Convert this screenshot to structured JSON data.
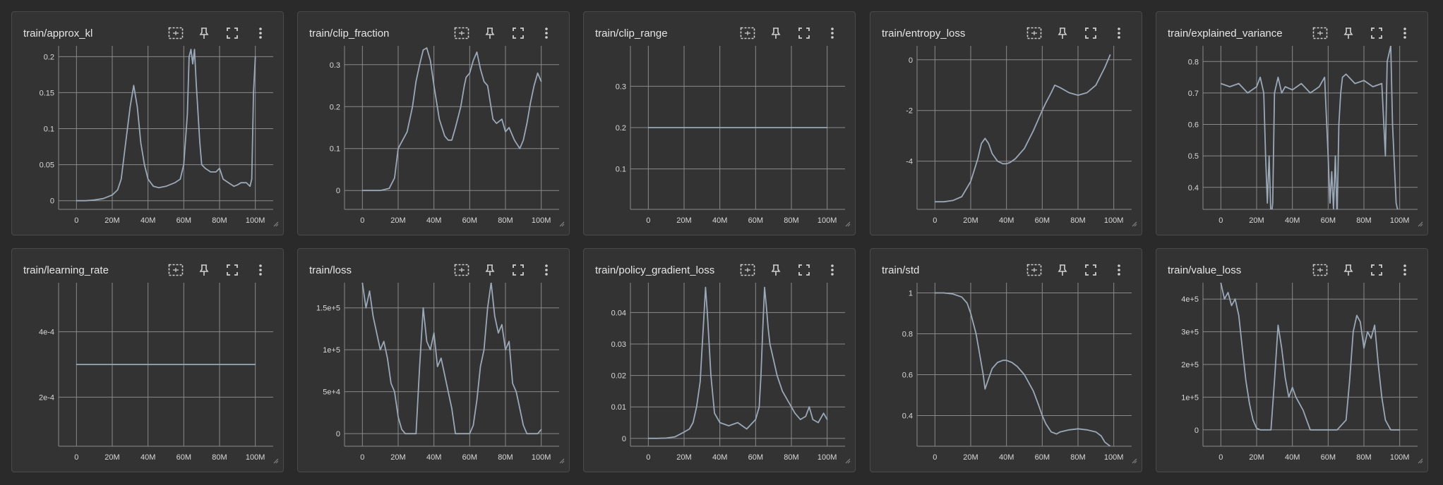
{
  "colors": {
    "background": "#2a2a2a",
    "card": "#333333",
    "grid": "#8a8a8a",
    "series": "#9aa8b8"
  },
  "icons": {
    "fit": "fit-domain-icon",
    "pin": "pin-icon",
    "fullscreen": "fullscreen-icon",
    "more": "more-vert-icon"
  },
  "chart_data": [
    {
      "title": "train/approx_kl",
      "type": "line",
      "xticks": [
        "0",
        "20M",
        "40M",
        "60M",
        "80M",
        "100M"
      ],
      "xlim": [
        -10,
        110
      ],
      "yticks": [
        "0",
        "0.05",
        "0.1",
        "0.15",
        "0.2"
      ],
      "ylim": [
        -0.012,
        0.215
      ],
      "x": [
        0,
        5,
        10,
        15,
        20,
        23,
        25,
        27,
        30,
        32,
        34,
        36,
        38,
        40,
        43,
        46,
        50,
        55,
        58,
        60,
        62,
        63,
        64,
        65,
        66,
        67,
        69,
        70,
        72,
        75,
        78,
        80,
        82,
        85,
        88,
        90,
        92,
        95,
        97,
        98,
        99,
        100
      ],
      "y": [
        0,
        0,
        0.001,
        0.003,
        0.008,
        0.015,
        0.03,
        0.07,
        0.13,
        0.16,
        0.13,
        0.08,
        0.05,
        0.03,
        0.02,
        0.018,
        0.02,
        0.025,
        0.03,
        0.05,
        0.12,
        0.2,
        0.21,
        0.19,
        0.21,
        0.16,
        0.08,
        0.05,
        0.045,
        0.04,
        0.04,
        0.045,
        0.03,
        0.025,
        0.02,
        0.022,
        0.025,
        0.025,
        0.02,
        0.03,
        0.15,
        0.2
      ]
    },
    {
      "title": "train/clip_fraction",
      "type": "line",
      "xticks": [
        "0",
        "20M",
        "40M",
        "60M",
        "80M",
        "100M"
      ],
      "xlim": [
        -10,
        110
      ],
      "yticks": [
        "0",
        "0.1",
        "0.2",
        "0.3"
      ],
      "ylim": [
        -0.045,
        0.345
      ],
      "x": [
        0,
        5,
        10,
        15,
        18,
        20,
        25,
        28,
        30,
        32,
        34,
        36,
        38,
        40,
        43,
        46,
        48,
        50,
        52,
        55,
        57,
        58,
        60,
        62,
        64,
        66,
        68,
        70,
        73,
        75,
        78,
        80,
        82,
        85,
        88,
        90,
        92,
        94,
        96,
        98,
        100
      ],
      "y": [
        0,
        0,
        0,
        0.005,
        0.03,
        0.1,
        0.14,
        0.2,
        0.26,
        0.3,
        0.335,
        0.34,
        0.31,
        0.25,
        0.17,
        0.13,
        0.12,
        0.12,
        0.15,
        0.2,
        0.25,
        0.27,
        0.28,
        0.31,
        0.33,
        0.29,
        0.26,
        0.25,
        0.17,
        0.16,
        0.17,
        0.14,
        0.15,
        0.12,
        0.1,
        0.12,
        0.16,
        0.21,
        0.25,
        0.28,
        0.26
      ]
    },
    {
      "title": "train/clip_range",
      "type": "line",
      "xticks": [
        "0",
        "20M",
        "40M",
        "60M",
        "80M",
        "100M"
      ],
      "xlim": [
        -10,
        110
      ],
      "yticks": [
        "0.1",
        "0.2",
        "0.3"
      ],
      "ylim": [
        0.002,
        0.398
      ],
      "x": [
        0,
        100
      ],
      "y": [
        0.2,
        0.2
      ]
    },
    {
      "title": "train/entropy_loss",
      "type": "line",
      "xticks": [
        "0",
        "20M",
        "40M",
        "60M",
        "80M",
        "100M"
      ],
      "xlim": [
        -10,
        110
      ],
      "yticks": [
        "-4",
        "-2",
        "0"
      ],
      "ylim": [
        -5.9,
        0.55
      ],
      "x": [
        0,
        5,
        10,
        15,
        20,
        24,
        26,
        28,
        30,
        32,
        35,
        38,
        40,
        42,
        45,
        50,
        55,
        60,
        62,
        65,
        67,
        70,
        75,
        80,
        85,
        90,
        95,
        98
      ],
      "y": [
        -5.6,
        -5.6,
        -5.55,
        -5.4,
        -4.8,
        -3.9,
        -3.3,
        -3.1,
        -3.3,
        -3.7,
        -4.0,
        -4.1,
        -4.1,
        -4.05,
        -3.9,
        -3.5,
        -2.8,
        -2.0,
        -1.7,
        -1.3,
        -1.0,
        -1.1,
        -1.3,
        -1.4,
        -1.3,
        -1.0,
        -0.3,
        0.2
      ]
    },
    {
      "title": "train/explained_variance",
      "type": "line",
      "xticks": [
        "0",
        "20M",
        "40M",
        "60M",
        "80M",
        "100M"
      ],
      "xlim": [
        -10,
        110
      ],
      "yticks": [
        "0.4",
        "0.5",
        "0.6",
        "0.7",
        "0.8"
      ],
      "ylim": [
        0.33,
        0.85
      ],
      "x": [
        0,
        5,
        10,
        15,
        20,
        22,
        24,
        25,
        26,
        27,
        28,
        29,
        30,
        32,
        34,
        36,
        40,
        45,
        50,
        55,
        58,
        60,
        61,
        62,
        63,
        64,
        65,
        66,
        67,
        68,
        70,
        75,
        80,
        85,
        90,
        92,
        93,
        95,
        96,
        98,
        100
      ],
      "y": [
        0.73,
        0.72,
        0.73,
        0.7,
        0.72,
        0.75,
        0.7,
        0.5,
        0.35,
        0.5,
        0.3,
        0.35,
        0.7,
        0.75,
        0.7,
        0.72,
        0.71,
        0.73,
        0.7,
        0.72,
        0.75,
        0.5,
        0.35,
        0.45,
        0.33,
        0.5,
        0.3,
        0.6,
        0.7,
        0.75,
        0.76,
        0.73,
        0.74,
        0.72,
        0.73,
        0.5,
        0.8,
        0.85,
        0.6,
        0.35,
        0.3
      ]
    },
    {
      "title": "train/learning_rate",
      "type": "line",
      "xticks": [
        "0",
        "20M",
        "40M",
        "60M",
        "80M",
        "100M"
      ],
      "xlim": [
        -10,
        110
      ],
      "yticks": [
        "2e-4",
        "4e-4"
      ],
      "ylim": [
        5e-05,
        0.00055
      ],
      "x": [
        0,
        100
      ],
      "y": [
        0.0003,
        0.0003
      ]
    },
    {
      "title": "train/loss",
      "type": "line",
      "xticks": [
        "0",
        "20M",
        "40M",
        "60M",
        "80M",
        "100M"
      ],
      "xlim": [
        -10,
        110
      ],
      "yticks": [
        "0",
        "5e+4",
        "1e+5",
        "1.5e+5"
      ],
      "ylim": [
        -15000,
        180000
      ],
      "x": [
        0,
        2,
        4,
        6,
        8,
        10,
        12,
        14,
        16,
        18,
        20,
        22,
        24,
        26,
        28,
        30,
        32,
        34,
        36,
        38,
        40,
        42,
        44,
        46,
        48,
        50,
        52,
        55,
        58,
        60,
        62,
        64,
        66,
        68,
        70,
        72,
        74,
        76,
        78,
        80,
        82,
        84,
        86,
        88,
        90,
        92,
        95,
        98,
        100
      ],
      "y": [
        180000,
        150000,
        170000,
        140000,
        120000,
        100000,
        110000,
        90000,
        60000,
        50000,
        20000,
        5000,
        0,
        0,
        0,
        0,
        80000,
        150000,
        110000,
        100000,
        120000,
        80000,
        90000,
        70000,
        50000,
        30000,
        0,
        0,
        0,
        0,
        10000,
        40000,
        80000,
        100000,
        150000,
        180000,
        140000,
        120000,
        130000,
        100000,
        110000,
        60000,
        50000,
        30000,
        10000,
        0,
        0,
        0,
        5000
      ]
    },
    {
      "title": "train/policy_gradient_loss",
      "type": "line",
      "xticks": [
        "0",
        "20M",
        "40M",
        "60M",
        "80M",
        "100M"
      ],
      "xlim": [
        -10,
        110
      ],
      "yticks": [
        "0",
        "0.01",
        "0.02",
        "0.03",
        "0.04"
      ],
      "ylim": [
        -0.0025,
        0.0495
      ],
      "x": [
        0,
        5,
        10,
        15,
        20,
        23,
        25,
        27,
        29,
        30,
        31,
        32,
        33,
        34,
        35,
        37,
        40,
        45,
        50,
        55,
        60,
        62,
        63,
        64,
        65,
        66,
        67,
        68,
        70,
        72,
        75,
        78,
        80,
        82,
        85,
        88,
        90,
        92,
        95,
        98,
        100
      ],
      "y": [
        0,
        0,
        0.0001,
        0.0005,
        0.002,
        0.003,
        0.005,
        0.01,
        0.018,
        0.028,
        0.038,
        0.048,
        0.04,
        0.03,
        0.02,
        0.008,
        0.005,
        0.004,
        0.005,
        0.003,
        0.006,
        0.01,
        0.02,
        0.035,
        0.048,
        0.042,
        0.035,
        0.03,
        0.025,
        0.02,
        0.015,
        0.012,
        0.01,
        0.008,
        0.006,
        0.007,
        0.01,
        0.006,
        0.005,
        0.008,
        0.006
      ]
    },
    {
      "title": "train/std",
      "type": "line",
      "xticks": [
        "0",
        "20M",
        "40M",
        "60M",
        "80M",
        "100M"
      ],
      "xlim": [
        -10,
        110
      ],
      "yticks": [
        "0.4",
        "0.6",
        "0.8",
        "1"
      ],
      "ylim": [
        0.25,
        1.05
      ],
      "x": [
        0,
        5,
        10,
        15,
        18,
        20,
        23,
        25,
        27,
        28,
        30,
        32,
        35,
        38,
        40,
        43,
        46,
        50,
        55,
        58,
        60,
        62,
        65,
        68,
        70,
        75,
        80,
        85,
        90,
        93,
        95,
        98
      ],
      "y": [
        1,
        1,
        0.995,
        0.98,
        0.95,
        0.9,
        0.8,
        0.7,
        0.6,
        0.53,
        0.58,
        0.63,
        0.66,
        0.67,
        0.67,
        0.66,
        0.64,
        0.6,
        0.52,
        0.45,
        0.4,
        0.36,
        0.32,
        0.31,
        0.32,
        0.33,
        0.335,
        0.33,
        0.32,
        0.3,
        0.27,
        0.25
      ]
    },
    {
      "title": "train/value_loss",
      "type": "line",
      "xticks": [
        "0",
        "20M",
        "40M",
        "60M",
        "80M",
        "100M"
      ],
      "xlim": [
        -10,
        110
      ],
      "yticks": [
        "0",
        "1e+5",
        "2e+5",
        "3e+5",
        "4e+5"
      ],
      "ylim": [
        -50000,
        450000
      ],
      "x": [
        0,
        2,
        4,
        6,
        8,
        10,
        12,
        14,
        16,
        18,
        20,
        22,
        25,
        28,
        30,
        32,
        34,
        36,
        38,
        40,
        42,
        44,
        46,
        48,
        50,
        55,
        60,
        65,
        70,
        72,
        74,
        76,
        78,
        80,
        82,
        84,
        86,
        88,
        90,
        92,
        95,
        98,
        100
      ],
      "y": [
        450000,
        400000,
        420000,
        380000,
        400000,
        350000,
        250000,
        150000,
        80000,
        30000,
        5000,
        0,
        0,
        0,
        150000,
        320000,
        250000,
        160000,
        100000,
        130000,
        100000,
        80000,
        60000,
        30000,
        0,
        0,
        0,
        0,
        30000,
        150000,
        300000,
        350000,
        330000,
        250000,
        300000,
        280000,
        320000,
        200000,
        100000,
        30000,
        0,
        0,
        0
      ]
    }
  ]
}
